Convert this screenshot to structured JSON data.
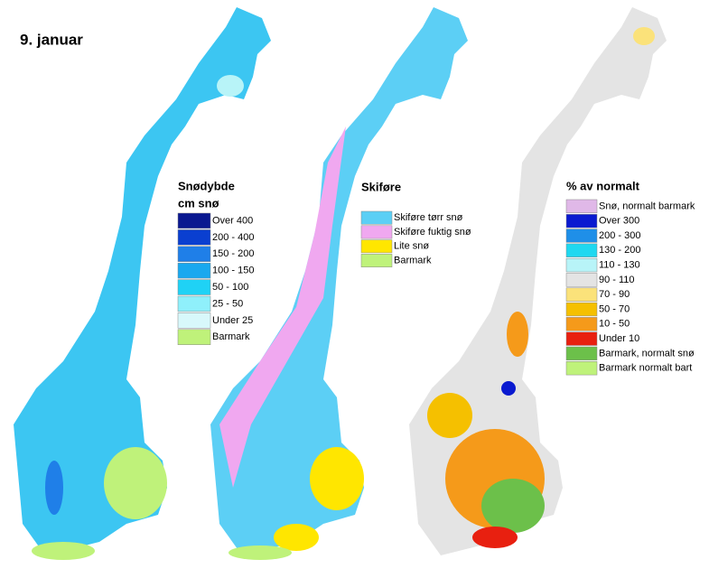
{
  "title": "9. januar",
  "maps": [
    {
      "legend": {
        "title": "Snødybde",
        "subtitle": "cm snø",
        "items": [
          {
            "label": "Over 400",
            "color": "#0a1890"
          },
          {
            "label": "200 - 400",
            "color": "#0a3fd0"
          },
          {
            "label": "150 - 200",
            "color": "#1f7fe8"
          },
          {
            "label": "100 - 150",
            "color": "#19a8ef"
          },
          {
            "label": "50 - 100",
            "color": "#1fd2f5"
          },
          {
            "label": "25 - 50",
            "color": "#8ff0fb"
          },
          {
            "label": "Under 25",
            "color": "#d8f8fb"
          },
          {
            "label": "Barmark",
            "color": "#bff27a"
          }
        ]
      }
    },
    {
      "legend": {
        "title": "Skiføre",
        "items": [
          {
            "label": "Skiføre tørr snø",
            "color": "#5ccff5"
          },
          {
            "label": "Skiføre fuktig snø",
            "color": "#f0a8f0"
          },
          {
            "label": "Lite snø",
            "color": "#ffe600"
          },
          {
            "label": "Barmark",
            "color": "#bff27a"
          }
        ]
      }
    },
    {
      "legend": {
        "title": "% av normalt",
        "items": [
          {
            "label": "Snø, normalt barmark",
            "color": "#e0b8e8"
          },
          {
            "label": "Over 300",
            "color": "#0a1ad0"
          },
          {
            "label": "200 - 300",
            "color": "#1f8fe8"
          },
          {
            "label": "130 - 200",
            "color": "#1fd8f0"
          },
          {
            "label": "110 - 130",
            "color": "#b8f4f8"
          },
          {
            "label": "90 - 110",
            "color": "#e4e4e4"
          },
          {
            "label": "70 - 90",
            "color": "#fbe27a"
          },
          {
            "label": "50 - 70",
            "color": "#f5c000"
          },
          {
            "label": "10 - 50",
            "color": "#f59a1a"
          },
          {
            "label": "Under 10",
            "color": "#e82010"
          },
          {
            "label": "Barmark, normalt snø",
            "color": "#6cc04a"
          },
          {
            "label": "Barmark normalt bart",
            "color": "#bff27a"
          }
        ]
      }
    }
  ]
}
